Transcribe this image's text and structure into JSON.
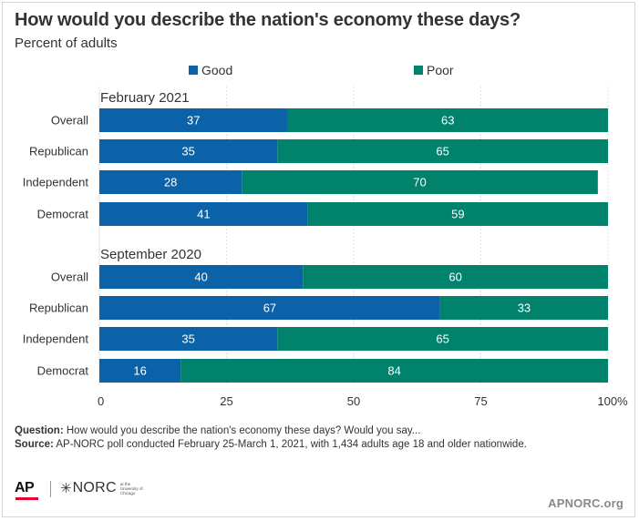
{
  "title": "How would you describe the nation's economy these days?",
  "subtitle": "Percent of adults",
  "chart_data": {
    "type": "bar",
    "orientation": "horizontal",
    "stacked": true,
    "title": "How would you describe the nation's economy these days?",
    "subtitle": "Percent of adults",
    "xlim": [
      0,
      100
    ],
    "x_ticks": [
      "0",
      "25",
      "50",
      "75",
      "100%"
    ],
    "x_tick_values": [
      0,
      25,
      50,
      75,
      100
    ],
    "grid": true,
    "legend_position": "top",
    "series": [
      {
        "name": "Good",
        "color": "#0c62a8"
      },
      {
        "name": "Poor",
        "color": "#00826d"
      }
    ],
    "groups": [
      {
        "label": "February 2021",
        "rows": [
          {
            "category": "Overall",
            "values": [
              37,
              63
            ]
          },
          {
            "category": "Republican",
            "values": [
              35,
              65
            ]
          },
          {
            "category": "Independent",
            "values": [
              28,
              70
            ]
          },
          {
            "category": "Democrat",
            "values": [
              41,
              59
            ]
          }
        ]
      },
      {
        "label": "September 2020",
        "rows": [
          {
            "category": "Overall",
            "values": [
              40,
              60
            ]
          },
          {
            "category": "Republican",
            "values": [
              67,
              33
            ]
          },
          {
            "category": "Independent",
            "values": [
              35,
              65
            ]
          },
          {
            "category": "Democrat",
            "values": [
              16,
              84
            ]
          }
        ]
      }
    ]
  },
  "footnotes": {
    "question_label": "Question:",
    "question_text": " How would you describe the nation's economy these days? Would you say...",
    "source_label": "Source:",
    "source_text": " AP-NORC poll conducted February 25-March 1, 2021, with 1,434 adults age 18 and older nationwide."
  },
  "branding": {
    "ap_logo": "AP",
    "norc_logo": "NORC",
    "norc_star": "✳",
    "norc_tagline": "at the University of Chicago",
    "site": "APNORC.org"
  }
}
